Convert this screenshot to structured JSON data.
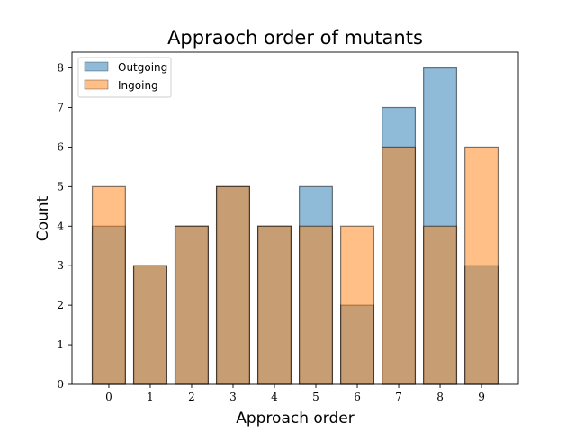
{
  "chart_data": {
    "type": "bar",
    "title": "Appraoch order of mutants",
    "xlabel": "Approach order",
    "ylabel": "Count",
    "categories": [
      "0",
      "1",
      "2",
      "3",
      "4",
      "5",
      "6",
      "7",
      "8",
      "9"
    ],
    "ylim": [
      0,
      8.4
    ],
    "yticks": [
      "0",
      "1",
      "2",
      "3",
      "4",
      "5",
      "6",
      "7",
      "8"
    ],
    "grid": false,
    "legend_position": "top-left",
    "series": [
      {
        "name": "Outgoing",
        "values": [
          4,
          3,
          4,
          5,
          4,
          5,
          2,
          7,
          8,
          3
        ],
        "color": "#1f77b4",
        "opacity": 0.5
      },
      {
        "name": "Ingoing",
        "values": [
          5,
          3,
          4,
          5,
          4,
          4,
          4,
          6,
          4,
          6
        ],
        "color": "#ff7f0e",
        "opacity": 0.5
      }
    ],
    "edge_color": "#000000"
  }
}
